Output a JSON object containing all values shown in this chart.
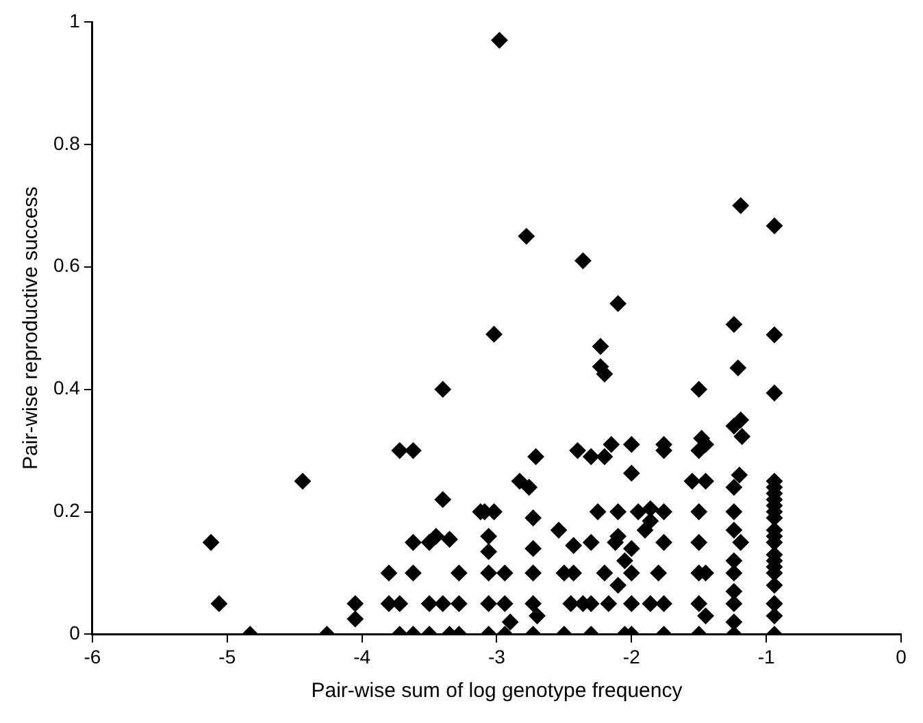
{
  "chart_data": {
    "type": "scatter",
    "xlabel": "Pair-wise sum of log genotype frequency",
    "ylabel": "Pair-wise reproductive success",
    "xlim": [
      -6,
      0
    ],
    "xticks": [
      -6,
      -5,
      -4,
      -3,
      -2,
      -1,
      0
    ],
    "ylim": [
      0,
      1
    ],
    "yticks": [
      0,
      0.2,
      0.4,
      0.6,
      0.8,
      1
    ],
    "grid": false,
    "legend": false,
    "marker": "diamond",
    "series": [
      {
        "color": "#000000",
        "x": [
          -5.12,
          -5.06,
          -4.83,
          -4.44,
          -4.26,
          -4.05,
          -4.05,
          -3.8,
          -3.8,
          -3.72,
          -3.62,
          -3.72,
          -3.62,
          -3.72,
          -3.62,
          -3.62,
          -3.5,
          -3.5,
          -3.5,
          -3.45,
          -3.4,
          -3.4,
          -3.4,
          -3.35,
          -3.35,
          -3.28,
          -3.28,
          -3.28,
          -3.12,
          -3.09,
          -3.02,
          -3.06,
          -3.06,
          -3.06,
          -3.06,
          -3.06,
          -3.02,
          -2.98,
          -2.94,
          -2.94,
          -2.94,
          -2.9,
          -2.83,
          -2.78,
          -2.76,
          -2.73,
          -2.73,
          -2.73,
          -2.73,
          -2.73,
          -2.71,
          -2.7,
          -2.54,
          -2.5,
          -2.5,
          -2.45,
          -2.43,
          -2.43,
          -2.4,
          -2.36,
          -2.36,
          -2.3,
          -2.3,
          -2.3,
          -2.3,
          -2.25,
          -2.23,
          -2.23,
          -2.2,
          -2.2,
          -2.2,
          -2.17,
          -2.15,
          -2.12,
          -2.1,
          -2.1,
          -2.1,
          -2.1,
          -2.05,
          -2.05,
          -2.0,
          -2.0,
          -2.0,
          -2.0,
          -2.0,
          -2.0,
          -1.95,
          -1.9,
          -1.86,
          -1.86,
          -1.86,
          -1.8,
          -1.76,
          -1.76,
          -1.76,
          -1.76,
          -1.76,
          -1.76,
          -1.55,
          -1.5,
          -1.5,
          -1.5,
          -1.5,
          -1.5,
          -1.5,
          -1.5,
          -1.45,
          -1.45,
          -1.45,
          -1.45,
          -1.48,
          -1.24,
          -1.24,
          -1.24,
          -1.24,
          -1.24,
          -1.24,
          -1.24,
          -1.24,
          -1.24,
          -1.24,
          -1.19,
          -1.21,
          -1.19,
          -1.24,
          -1.18,
          -1.19,
          -1.2,
          -0.94,
          -0.94,
          -0.94,
          -0.94,
          -0.94,
          -0.94,
          -0.94,
          -0.94,
          -0.94,
          -0.94,
          -0.94,
          -0.94,
          -0.94,
          -0.94,
          -0.94,
          -0.94,
          -0.94,
          -0.94,
          -0.94,
          -0.94,
          -0.94,
          -0.94
        ],
        "values": [
          0.15,
          0.05,
          0,
          0.25,
          0,
          0.05,
          0.025,
          0.1,
          0.05,
          0.3,
          0.3,
          0.05,
          0.1,
          0,
          0.15,
          0,
          0.15,
          0.05,
          0,
          0.16,
          0.22,
          0.4,
          0.05,
          0.155,
          0,
          0.05,
          0.1,
          0,
          0.2,
          0.2,
          0.2,
          0.16,
          0.135,
          0.1,
          0.05,
          0,
          0.49,
          0.97,
          0.1,
          0.05,
          0,
          0.02,
          0.25,
          0.65,
          0.24,
          0.19,
          0.14,
          0.1,
          0.05,
          0,
          0.29,
          0.03,
          0.17,
          0.1,
          0,
          0.05,
          0.145,
          0.1,
          0.3,
          0.61,
          0.05,
          0.29,
          0.15,
          0.05,
          0,
          0.2,
          0.47,
          0.437,
          0.425,
          0.29,
          0.1,
          0.05,
          0.31,
          0.15,
          0.54,
          0.2,
          0.16,
          0.08,
          0.12,
          0,
          0.31,
          0.263,
          0.14,
          0.1,
          0.05,
          0,
          0.2,
          0.17,
          0.185,
          0.205,
          0.05,
          0.1,
          0.31,
          0.3,
          0.2,
          0.15,
          0.05,
          0,
          0.25,
          0.4,
          0.2,
          0.15,
          0.1,
          0.05,
          0,
          0.3,
          0.31,
          0.25,
          0.1,
          0.03,
          0.32,
          0.24,
          0.2,
          0.17,
          0.12,
          0.1,
          0.07,
          0.05,
          0.02,
          0,
          0.506,
          0.7,
          0.435,
          0.35,
          0.34,
          0.323,
          0.15,
          0.26,
          0.25,
          0.24,
          0.22,
          0.21,
          0.2,
          0.19,
          0.17,
          0.16,
          0.15,
          0.13,
          0.12,
          0.1,
          0.08,
          0.05,
          0.03,
          0,
          0.667,
          0.489,
          0.394,
          0.05,
          0.11,
          0.23
        ]
      }
    ]
  }
}
